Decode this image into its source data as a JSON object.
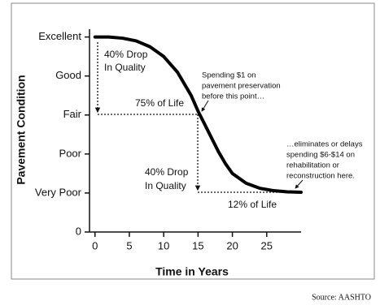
{
  "chart_data": {
    "type": "line",
    "y_label": "Pavement Condition",
    "x_label": "Time in Years",
    "x": [
      0,
      2,
      4,
      6,
      8,
      10,
      12,
      14,
      15,
      16,
      17,
      18,
      19,
      20,
      22,
      24,
      26,
      28,
      30
    ],
    "series": [
      {
        "color": "#000000",
        "values": [
          5,
          5,
          4.97,
          4.9,
          4.75,
          4.5,
          4.1,
          3.5,
          3.1,
          2.75,
          2.4,
          2.05,
          1.75,
          1.5,
          1.25,
          1.12,
          1.06,
          1.03,
          1.02
        ]
      }
    ],
    "xlim": [
      -0.8,
      30
    ],
    "xticks": [
      0,
      5,
      10,
      15,
      20,
      25
    ],
    "ylim": [
      0,
      5.2
    ],
    "yticks": [
      0,
      {
        "value": 1,
        "label": "Very Poor"
      },
      {
        "value": 2,
        "label": "Poor"
      },
      {
        "value": 3,
        "label": "Fair"
      },
      {
        "value": 4,
        "label": "Good"
      },
      {
        "value": 5,
        "label": "Excellent"
      }
    ],
    "annotations": {
      "drop_top": [
        "40% Drop",
        "In Quality"
      ],
      "life_75": "75% of Life",
      "spending": [
        "Spending $1 on",
        "pavement preservation",
        "before this point…"
      ],
      "drop_bottom": [
        "40% Drop",
        "In Quality"
      ],
      "life_12": "12% of Life",
      "eliminates": [
        "…eliminates or delays",
        "spending $6-$14 on",
        "rehabilitation or",
        "reconstruction here."
      ]
    },
    "source": "Source:  AASHTO"
  }
}
